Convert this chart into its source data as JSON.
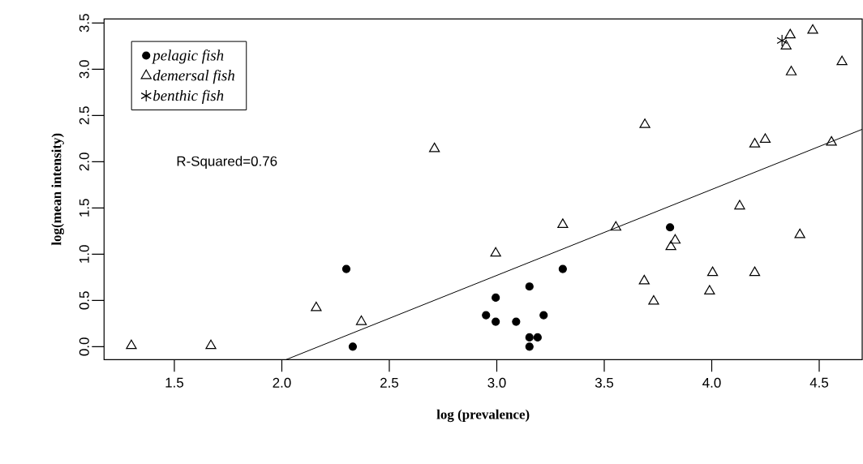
{
  "chart_data": {
    "type": "scatter",
    "xlabel": "log (prevalence)",
    "ylabel": "log(mean intensity)",
    "xlim": [
      1.173,
      4.7
    ],
    "ylim": [
      -0.14,
      3.544
    ],
    "xticks": [
      1.5,
      {
        "value": 2,
        "label": "2.0"
      },
      2.5,
      {
        "value": 3,
        "label": "3.0"
      },
      3.5,
      {
        "value": 4,
        "label": "4.0"
      },
      4.5
    ],
    "yticks": [
      {
        "value": 0,
        "label": "0.0"
      },
      0.5,
      {
        "value": 1,
        "label": "1.0"
      },
      1.5,
      {
        "value": 2,
        "label": "2.0"
      },
      2.5,
      {
        "value": 3,
        "label": "3.0"
      },
      3.5
    ],
    "legend": "top left",
    "grid": false,
    "annotations": [
      "R-Squared=0.76"
    ],
    "series": [
      {
        "name": "pelagic fish",
        "color": "#000000",
        "marker": "circle",
        "x": [
          2.3,
          2.33,
          3.307,
          3.152,
          2.995,
          2.95,
          2.995,
          3.09,
          3.218,
          3.152,
          3.19,
          3.152,
          3.806
        ],
        "values": [
          0.84,
          0.0,
          0.84,
          0.65,
          0.53,
          0.34,
          0.27,
          0.27,
          0.34,
          0.1,
          0.1,
          0.0,
          1.29
        ]
      },
      {
        "name": "demersal fish",
        "color": "#000000",
        "marker": "triangle",
        "x": [
          1.3,
          1.67,
          2.16,
          2.37,
          2.71,
          2.995,
          3.307,
          3.554,
          3.83,
          3.81,
          4.13,
          4.41,
          3.686,
          3.73,
          4.004,
          3.99,
          4.2,
          4.365,
          4.346,
          4.47,
          4.606,
          4.37,
          3.689,
          4.2,
          4.249,
          4.557
        ],
        "values": [
          0.01,
          0.01,
          0.42,
          0.27,
          2.14,
          1.01,
          1.32,
          1.29,
          1.15,
          1.08,
          1.52,
          1.21,
          0.71,
          0.49,
          0.8,
          0.6,
          0.8,
          3.37,
          3.25,
          3.42,
          3.08,
          2.97,
          2.4,
          2.19,
          2.24,
          2.21
        ]
      },
      {
        "name": "benthic fish",
        "color": "#000000",
        "marker": "cross",
        "x": [
          4.327
        ],
        "values": [
          3.31
        ]
      },
      {
        "type": "line",
        "color": "#000000",
        "x": [
          2.02,
          4.7
        ],
        "values": [
          -0.14,
          2.35
        ]
      }
    ]
  }
}
